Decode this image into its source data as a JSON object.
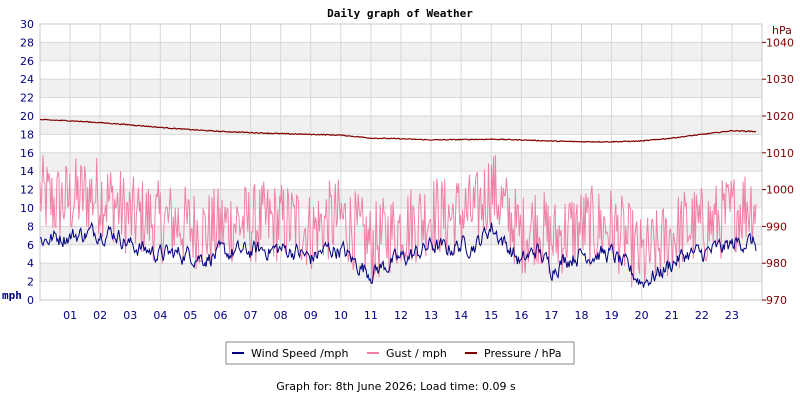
{
  "chart_data": {
    "type": "line",
    "title": "Daily graph of Weather",
    "footer": "Graph for: 8th June 2026; Load time: 0.09 s",
    "left_axis": {
      "unit_label": "mph",
      "min": 0,
      "max": 30,
      "ticks": [
        0,
        2,
        4,
        6,
        8,
        10,
        12,
        14,
        16,
        18,
        20,
        22,
        24,
        26,
        28,
        30
      ]
    },
    "right_axis": {
      "unit_label": "hPa",
      "min": 970,
      "max": 1045,
      "ticks": [
        970,
        980,
        990,
        1000,
        1010,
        1020,
        1030,
        1040
      ]
    },
    "x_axis": {
      "min": 0,
      "max": 24,
      "tick_labels": [
        "01",
        "02",
        "03",
        "04",
        "05",
        "06",
        "07",
        "08",
        "09",
        "10",
        "11",
        "12",
        "13",
        "14",
        "15",
        "16",
        "17",
        "18",
        "19",
        "20",
        "21",
        "22",
        "23"
      ]
    },
    "grid": true,
    "legend_position": "bottom-center",
    "colors": {
      "wind": "#000080",
      "gust": "#f080a8",
      "pressure": "#800000",
      "left_axis_text": "#000080",
      "right_axis_text": "#800000",
      "band": "#f0f0f0",
      "grid": "#d8d8d8"
    },
    "series": [
      {
        "name": "Wind Speed /mph",
        "key": "wind",
        "x": [
          0,
          0.5,
          1,
          1.5,
          2,
          2.5,
          3,
          3.5,
          4,
          4.5,
          5,
          5.5,
          6,
          6.5,
          7,
          7.5,
          8,
          8.5,
          9,
          9.5,
          10,
          10.5,
          11,
          11.5,
          12,
          12.5,
          13,
          13.5,
          14,
          14.5,
          15,
          15.5,
          16,
          16.5,
          17,
          17.5,
          18,
          18.5,
          19,
          19.5,
          20,
          20.5,
          21,
          21.5,
          22,
          22.5,
          23,
          23.5,
          23.8
        ],
        "y": [
          6.5,
          6.8,
          7,
          7.2,
          7.5,
          7.3,
          6,
          5.5,
          5,
          5,
          5,
          4.6,
          5,
          5.2,
          5.3,
          5.5,
          5.5,
          5.3,
          4.5,
          5.5,
          5.5,
          4,
          3,
          3.8,
          4.5,
          5,
          6,
          5.5,
          6,
          6,
          8,
          6,
          4,
          5.5,
          3.5,
          4.5,
          5,
          5,
          5,
          3.5,
          2,
          2.8,
          4,
          5,
          5,
          5.5,
          6,
          6.5,
          6
        ]
      },
      {
        "name": "Gust / mph",
        "key": "gust",
        "x": [
          0,
          0.5,
          1,
          1.5,
          2,
          2.5,
          3,
          3.5,
          4,
          4.5,
          5,
          5.5,
          6,
          6.5,
          7,
          7.5,
          8,
          8.5,
          9,
          9.5,
          10,
          10.5,
          11,
          11.5,
          12,
          12.5,
          13,
          13.5,
          14,
          14.5,
          15,
          15.5,
          16,
          16.5,
          17,
          17.5,
          18,
          18.5,
          19,
          19.5,
          20,
          20.5,
          21,
          21.5,
          22,
          22.5,
          23,
          23.5,
          23.8
        ],
        "y": [
          11,
          10,
          10.5,
          11,
          11,
          10,
          8.5,
          8.5,
          8,
          8,
          7.5,
          7,
          7.5,
          8,
          7.8,
          8,
          8,
          8,
          7,
          8,
          8.5,
          7,
          5.5,
          6.5,
          7.5,
          8,
          9,
          8.5,
          9,
          9,
          12,
          9,
          6.5,
          8,
          6,
          7,
          7.5,
          7.5,
          7.5,
          6,
          4,
          5,
          6.5,
          7.5,
          7.5,
          8,
          9,
          10,
          10
        ]
      },
      {
        "name": "Pressure / hPa",
        "key": "pressure",
        "x": [
          0,
          1,
          2,
          3,
          4,
          5,
          6,
          7,
          8,
          9,
          10,
          11,
          12,
          13,
          14,
          15,
          16,
          17,
          18,
          19,
          20,
          21,
          22,
          23,
          23.8
        ],
        "y": [
          1019,
          1018.7,
          1018.2,
          1017.6,
          1016.9,
          1016.3,
          1015.8,
          1015.5,
          1015.2,
          1015,
          1014.8,
          1014,
          1013.8,
          1013.5,
          1013.6,
          1013.7,
          1013.5,
          1013.2,
          1013,
          1013,
          1013.2,
          1014,
          1015,
          1016,
          1015.8
        ]
      }
    ]
  }
}
